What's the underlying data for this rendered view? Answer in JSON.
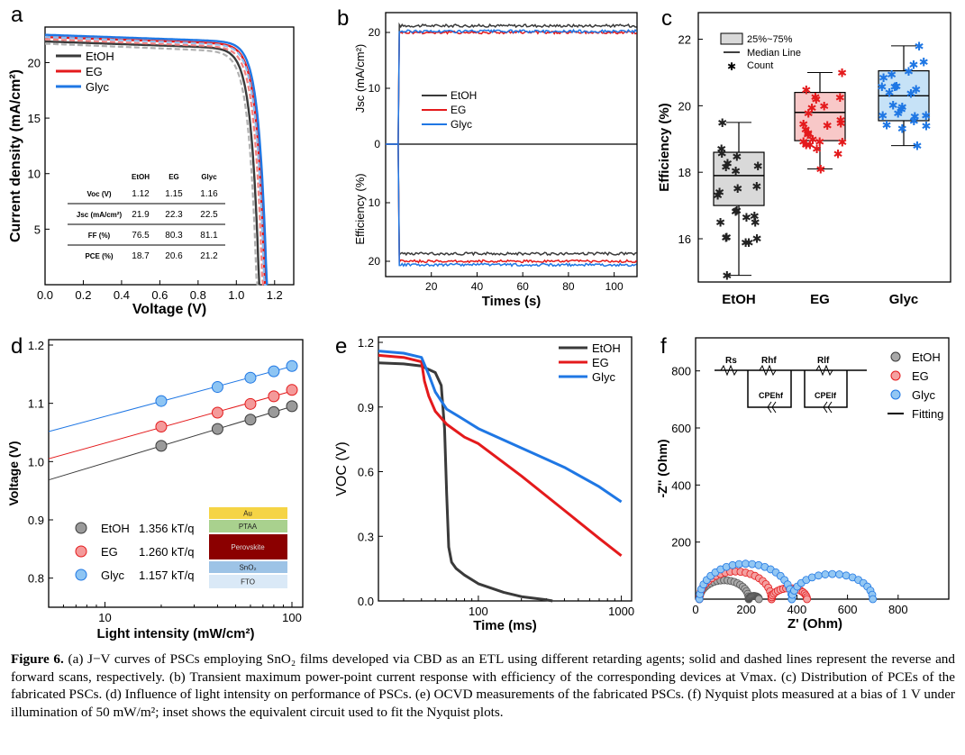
{
  "panels": {
    "a": {
      "letter": "a"
    },
    "b": {
      "letter": "b"
    },
    "c": {
      "letter": "c"
    },
    "d": {
      "letter": "d"
    },
    "e": {
      "letter": "e"
    },
    "f": {
      "letter": "f"
    }
  },
  "colors": {
    "EtOH": "#3a3a3a",
    "EG": "#e41a1c",
    "Glyc": "#1f77e4",
    "EtOH_fill": "#d9d9d9",
    "EG_fill": "#f8c8c8",
    "Glyc_fill": "#c6e2f7"
  },
  "chart_data": [
    {
      "panel": "a",
      "type": "line",
      "xlabel": "Voltage (V)",
      "ylabel": "Current density (mA/cm²)",
      "xlim": [
        0,
        1.3
      ],
      "ylim": [
        0,
        23.2
      ],
      "xticks": [
        "0.0",
        "0.2",
        "0.4",
        "0.6",
        "0.8",
        "1.0",
        "1.2"
      ],
      "yticks": [
        "5",
        "10",
        "15",
        "20"
      ],
      "legend": [
        "EtOH",
        "EG",
        "Glyc"
      ],
      "series": [
        {
          "name": "EtOH",
          "jsc": 21.9,
          "voc": 1.12
        },
        {
          "name": "EG",
          "jsc": 22.3,
          "voc": 1.15
        },
        {
          "name": "Glyc",
          "jsc": 22.5,
          "voc": 1.16
        }
      ],
      "table": {
        "columns": [
          "",
          "EtOH",
          "EG",
          "Glyc"
        ],
        "rows": [
          {
            "label": "Voc (V)",
            "values": [
              "1.12",
              "1.15",
              "1.16"
            ]
          },
          {
            "label": "Jsc (mA/cm²)",
            "values": [
              "21.9",
              "22.3",
              "22.5"
            ]
          },
          {
            "label": "FF (%)",
            "values": [
              "76.5",
              "80.3",
              "81.1"
            ]
          },
          {
            "label": "PCE (%)",
            "values": [
              "18.7",
              "20.6",
              "21.2"
            ]
          }
        ]
      }
    },
    {
      "panel": "b",
      "type": "line",
      "xlabel": "Times (s)",
      "ylabel_top": "Jsc (mA/cm²)",
      "ylabel_bottom": "Efficiency (%)",
      "xticks": [
        "20",
        "40",
        "60",
        "80",
        "100"
      ],
      "yticks": [
        "20",
        "10",
        "0",
        "10",
        "20"
      ],
      "legend": [
        "EtOH",
        "EG",
        "Glyc"
      ],
      "series": [
        {
          "name": "EtOH",
          "jsc": 21.2,
          "efficiency": 18.7
        },
        {
          "name": "EG",
          "jsc": 20.0,
          "efficiency": 20.0
        },
        {
          "name": "Glyc",
          "jsc": 20.2,
          "efficiency": 20.6
        }
      ]
    },
    {
      "panel": "c",
      "type": "box",
      "ylabel": "Efficiency (%)",
      "ylim": [
        14.7,
        22.8
      ],
      "yticks": [
        "16",
        "18",
        "20",
        "22"
      ],
      "categories": [
        "EtOH",
        "EG",
        "Glyc"
      ],
      "legend": [
        "25%~75%",
        "Median Line",
        "Count"
      ],
      "boxes": [
        {
          "name": "EtOH",
          "min": 14.9,
          "q1": 17.0,
          "median": 17.9,
          "q3": 18.6,
          "max": 19.5
        },
        {
          "name": "EG",
          "min": 18.1,
          "q1": 18.95,
          "median": 19.8,
          "q3": 20.4,
          "max": 21.0
        },
        {
          "name": "Glyc",
          "min": 18.8,
          "q1": 19.55,
          "median": 20.3,
          "q3": 21.05,
          "max": 21.8
        }
      ]
    },
    {
      "panel": "d",
      "type": "scatter",
      "xlabel": "Light intensity (mW/cm²)",
      "ylabel": "Voltage (V)",
      "xscale": "log",
      "xlim": [
        5,
        100
      ],
      "ylim": [
        0.75,
        1.2
      ],
      "xticks": [
        "10",
        "100"
      ],
      "yticks": [
        "0.8",
        "0.9",
        "1.0",
        "1.1",
        "1.2"
      ],
      "legend": [
        {
          "name": "EtOH",
          "slope": "1.356 kT/q"
        },
        {
          "name": "EG",
          "slope": "1.260 kT/q"
        },
        {
          "name": "Glyc",
          "slope": "1.157 kT/q"
        }
      ],
      "series": [
        {
          "name": "EtOH",
          "x": [
            20,
            40,
            60,
            80,
            100
          ],
          "y": [
            1.027,
            1.056,
            1.072,
            1.085,
            1.095
          ]
        },
        {
          "name": "EG",
          "x": [
            20,
            40,
            60,
            80,
            100
          ],
          "y": [
            1.06,
            1.084,
            1.099,
            1.112,
            1.123
          ]
        },
        {
          "name": "Glyc",
          "x": [
            20,
            40,
            60,
            80,
            100
          ],
          "y": [
            1.104,
            1.128,
            1.144,
            1.155,
            1.164
          ]
        }
      ],
      "device_stack": [
        "Au",
        "PTAA",
        "Perovskite",
        "SnO₂",
        "FTO"
      ]
    },
    {
      "panel": "e",
      "type": "line",
      "xlabel": "Time (ms)",
      "ylabel": "VOC (V)",
      "xscale": "log",
      "xticks": [
        "100",
        "1000"
      ],
      "yticks": [
        "0.0",
        "0.3",
        "0.6",
        "0.9",
        "1.2"
      ],
      "legend": [
        "EtOH",
        "EG",
        "Glyc"
      ],
      "series": [
        {
          "name": "EtOH",
          "x": [
            20,
            30,
            40,
            50,
            55,
            58,
            60,
            62,
            65,
            70,
            80,
            100,
            150,
            200,
            300,
            330
          ],
          "y": [
            1.105,
            1.1,
            1.09,
            1.06,
            1.0,
            0.8,
            0.5,
            0.25,
            0.18,
            0.15,
            0.12,
            0.08,
            0.04,
            0.02,
            0.005,
            0.0
          ]
        },
        {
          "name": "EG",
          "x": [
            20,
            30,
            40,
            42,
            45,
            50,
            60,
            80,
            100,
            200,
            400,
            700,
            1000
          ],
          "y": [
            1.14,
            1.13,
            1.11,
            1.02,
            0.95,
            0.88,
            0.82,
            0.76,
            0.73,
            0.58,
            0.42,
            0.29,
            0.21
          ]
        },
        {
          "name": "Glyc",
          "x": [
            20,
            30,
            40,
            45,
            50,
            60,
            80,
            100,
            200,
            400,
            700,
            1000
          ],
          "y": [
            1.16,
            1.15,
            1.13,
            1.05,
            0.97,
            0.89,
            0.84,
            0.8,
            0.71,
            0.62,
            0.53,
            0.46
          ]
        }
      ]
    },
    {
      "panel": "f",
      "type": "scatter",
      "xlabel": "Z' (Ohm)",
      "ylabel": "-Z'' (Ohm)",
      "xlim": [
        0,
        1000
      ],
      "ylim": [
        0,
        900
      ],
      "xticks": [
        "0",
        "200",
        "400",
        "600",
        "800"
      ],
      "yticks": [
        "200",
        "400",
        "600",
        "800"
      ],
      "legend": [
        "EtOH",
        "EG",
        "Glyc",
        "Fitting"
      ],
      "circuit_labels": [
        "Rs",
        "Rhf",
        "Rlf",
        "CPEhf",
        "CPElf"
      ],
      "series": [
        {
          "name": "EtOH",
          "arcs": [
            [
              15,
              210
            ],
            [
              210,
              250
            ]
          ]
        },
        {
          "name": "EG",
          "arcs": [
            [
              15,
              300
            ],
            [
              300,
              440
            ]
          ]
        },
        {
          "name": "Glyc",
          "arcs": [
            [
              15,
              380
            ],
            [
              380,
              700
            ]
          ]
        }
      ]
    }
  ],
  "caption": {
    "fig_label": "Figure 6.",
    "text": "(a) J−V curves of PSCs employing SnO₂ films developed via CBD as an ETL using different retarding agents; solid and dashed lines represent the reverse and forward scans, respectively. (b) Transient maximum power-point current response with efficiency of the corresponding devices at Vmax. (c) Distribution of PCEs of the fabricated PSCs. (d) Influence of light intensity on performance of PSCs. (e) OCVD measurements of the fabricated PSCs. (f) Nyquist plots measured at a bias of 1 V under illumination of 50 mW/m²; inset shows the equivalent circuit used to fit the Nyquist plots."
  }
}
